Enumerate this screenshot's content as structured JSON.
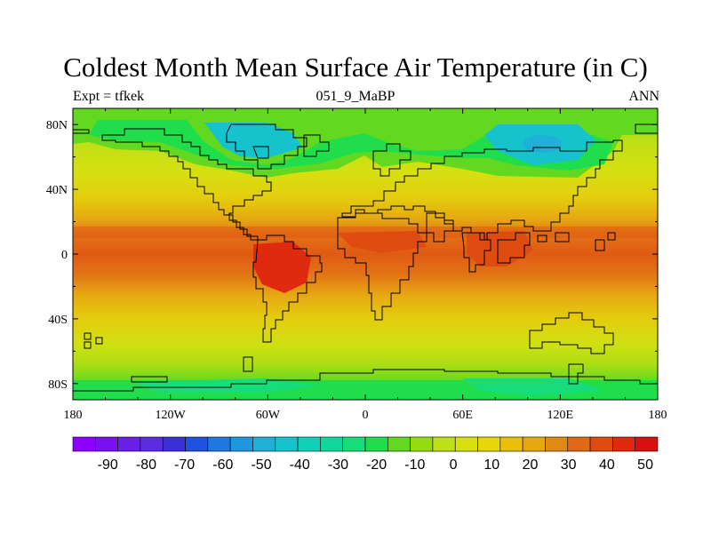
{
  "header": {
    "title": "Coldest Month Mean Surface Air Temperature (in C)",
    "left_label": "Expt = tfkek",
    "center_label": "051_9_MaBP",
    "right_label": "ANN"
  },
  "map": {
    "projection": "cylindrical equidistant",
    "lon_range": [
      -180,
      180
    ],
    "lat_range": [
      -90,
      90
    ],
    "lon_ticks": [
      "180",
      "120W",
      "60W",
      "0",
      "60E",
      "120E",
      "180"
    ],
    "lat_ticks": [
      "80N",
      "40N",
      "0",
      "40S",
      "80S"
    ]
  },
  "colorbar": {
    "labels": [
      "-90",
      "-80",
      "-70",
      "-60",
      "-50",
      "-40",
      "-30",
      "-20",
      "-10",
      "0",
      "10",
      "20",
      "30",
      "40",
      "50"
    ],
    "colors": [
      "#8c00ff",
      "#7a10ee",
      "#6a1fe6",
      "#5a2ee0",
      "#3b2fd6",
      "#1e52dd",
      "#1e78e0",
      "#1f97dc",
      "#1fb0d8",
      "#16c2cc",
      "#10cfb5",
      "#10d89c",
      "#16dc7a",
      "#20dd4c",
      "#62d820",
      "#94dc10",
      "#bee018",
      "#d8e010",
      "#e6d60a",
      "#e8c00a",
      "#e6a812",
      "#e08a14",
      "#e06a18",
      "#e04c10",
      "#e02a10",
      "#d91010"
    ]
  }
}
